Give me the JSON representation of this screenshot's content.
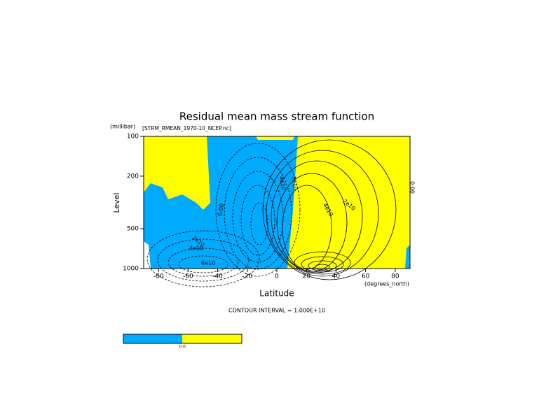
{
  "chart_data": {
    "type": "contour",
    "title": "Residual mean mass stream function",
    "subtitle": "[STRM_RMEAN_1970-10_NCEP.nc]",
    "x_label": "Latitude",
    "x_unit": "(degrees_north)",
    "y_label": "Level",
    "y_unit": "(millibar)",
    "footer": "CONTOUR INTERVAL = 1.000E+10",
    "xlim": [
      -90,
      90
    ],
    "xticks": [
      -80,
      -60,
      -40,
      -20,
      0,
      20,
      40,
      60,
      80
    ],
    "ylim": [
      1000,
      100
    ],
    "yticks": [
      100,
      200,
      500,
      1000
    ],
    "log_y": true,
    "colors": [
      "#00aaff",
      "#ffff00"
    ],
    "colorbar_label": "0.0",
    "annotations": [
      "0.00",
      "2e10",
      "4e10",
      "6e10",
      "4e10",
      "2e10",
      "4e10",
      "2e10",
      "0.00"
    ]
  }
}
